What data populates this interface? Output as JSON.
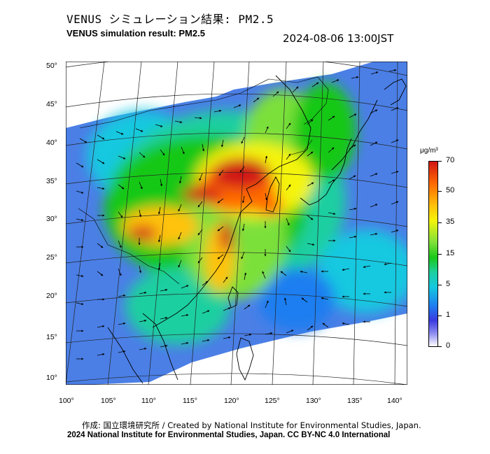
{
  "title_jp": "VENUS シミュレーション結果: PM2.5",
  "title_en": "VENUS simulation result: PM2.5",
  "timestamp": "2024-08-06 13:00JST",
  "colorbar": {
    "unit": "μg/m³",
    "ticks": [
      "70",
      "50",
      "35",
      "15",
      "5",
      "1",
      "0"
    ],
    "colors": [
      "#d11515",
      "#ff6a00",
      "#ffc20a",
      "#f4f40a",
      "#7ce03a",
      "#19c819",
      "#1ecfa0",
      "#14c8e0",
      "#1e7ef0",
      "#3a3ae0",
      "#8c8cf0",
      "#ffffff"
    ]
  },
  "lat_labels": [
    "50°",
    "45°",
    "40°",
    "35°",
    "30°",
    "25°",
    "20°",
    "15°",
    "10°"
  ],
  "lon_labels": [
    "100°",
    "105°",
    "110°",
    "115°",
    "120°",
    "125°",
    "130°",
    "135°",
    "140°"
  ],
  "credit_jp": "作成: 国立環境研究所 / Created by National Institute for Environmental Studies, Japan.",
  "credit_en": "2024 National Institute for Environmental Studies, Japan. CC BY-NC 4.0 International"
}
